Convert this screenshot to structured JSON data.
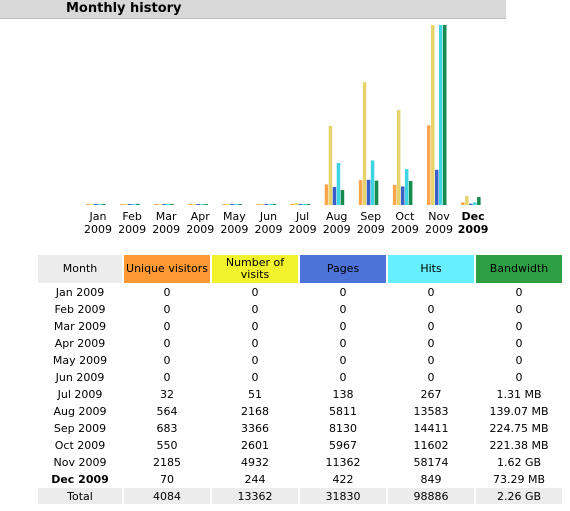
{
  "title": "Monthly history",
  "colors": {
    "visitors": "#ffa64d",
    "visits": "#e7d36b",
    "pages": "#3b5fc9",
    "hits": "#3fd4e1",
    "bandwidth": "#178a4e"
  },
  "chart_data": {
    "type": "bar",
    "categories": [
      {
        "month": "Jan",
        "year": "2009",
        "current": false
      },
      {
        "month": "Feb",
        "year": "2009",
        "current": false
      },
      {
        "month": "Mar",
        "year": "2009",
        "current": false
      },
      {
        "month": "Apr",
        "year": "2009",
        "current": false
      },
      {
        "month": "May",
        "year": "2009",
        "current": false
      },
      {
        "month": "Jun",
        "year": "2009",
        "current": false
      },
      {
        "month": "Jul",
        "year": "2009",
        "current": false
      },
      {
        "month": "Aug",
        "year": "2009",
        "current": false
      },
      {
        "month": "Sep",
        "year": "2009",
        "current": false
      },
      {
        "month": "Oct",
        "year": "2009",
        "current": false
      },
      {
        "month": "Nov",
        "year": "2009",
        "current": false
      },
      {
        "month": "Dec",
        "year": "2009",
        "current": true
      }
    ],
    "series": [
      {
        "name": "Unique visitors",
        "key": "visitors",
        "values": [
          0,
          0,
          0,
          0,
          0,
          0,
          32,
          564,
          683,
          550,
          2185,
          70
        ]
      },
      {
        "name": "Number of visits",
        "key": "visits",
        "values": [
          0,
          0,
          0,
          0,
          0,
          0,
          51,
          2168,
          3366,
          2601,
          4932,
          244
        ]
      },
      {
        "name": "Pages",
        "key": "pages",
        "values": [
          0,
          0,
          0,
          0,
          0,
          0,
          138,
          5811,
          8130,
          5967,
          11362,
          422
        ]
      },
      {
        "name": "Hits",
        "key": "hits",
        "values": [
          0,
          0,
          0,
          0,
          0,
          0,
          267,
          13583,
          14411,
          11602,
          58174,
          849
        ]
      },
      {
        "name": "Bandwidth",
        "key": "bandwidth",
        "values_mb": [
          0,
          0,
          0,
          0,
          0,
          0,
          1.31,
          139.07,
          224.75,
          221.38,
          1658.88,
          73.29
        ]
      }
    ]
  },
  "table": {
    "headers": {
      "month": "Month",
      "visitors": "Unique visitors",
      "visits": "Number of visits",
      "pages": "Pages",
      "hits": "Hits",
      "bandwidth": "Bandwidth"
    },
    "rows": [
      {
        "month": "Jan 2009",
        "visitors": "0",
        "visits": "0",
        "pages": "0",
        "hits": "0",
        "bandwidth": "0",
        "current": false
      },
      {
        "month": "Feb 2009",
        "visitors": "0",
        "visits": "0",
        "pages": "0",
        "hits": "0",
        "bandwidth": "0",
        "current": false
      },
      {
        "month": "Mar 2009",
        "visitors": "0",
        "visits": "0",
        "pages": "0",
        "hits": "0",
        "bandwidth": "0",
        "current": false
      },
      {
        "month": "Apr 2009",
        "visitors": "0",
        "visits": "0",
        "pages": "0",
        "hits": "0",
        "bandwidth": "0",
        "current": false
      },
      {
        "month": "May 2009",
        "visitors": "0",
        "visits": "0",
        "pages": "0",
        "hits": "0",
        "bandwidth": "0",
        "current": false
      },
      {
        "month": "Jun 2009",
        "visitors": "0",
        "visits": "0",
        "pages": "0",
        "hits": "0",
        "bandwidth": "0",
        "current": false
      },
      {
        "month": "Jul 2009",
        "visitors": "32",
        "visits": "51",
        "pages": "138",
        "hits": "267",
        "bandwidth": "1.31 MB",
        "current": false
      },
      {
        "month": "Aug 2009",
        "visitors": "564",
        "visits": "2168",
        "pages": "5811",
        "hits": "13583",
        "bandwidth": "139.07 MB",
        "current": false
      },
      {
        "month": "Sep 2009",
        "visitors": "683",
        "visits": "3366",
        "pages": "8130",
        "hits": "14411",
        "bandwidth": "224.75 MB",
        "current": false
      },
      {
        "month": "Oct 2009",
        "visitors": "550",
        "visits": "2601",
        "pages": "5967",
        "hits": "11602",
        "bandwidth": "221.38 MB",
        "current": false
      },
      {
        "month": "Nov 2009",
        "visitors": "2185",
        "visits": "4932",
        "pages": "11362",
        "hits": "58174",
        "bandwidth": "1.62 GB",
        "current": false
      },
      {
        "month": "Dec 2009",
        "visitors": "70",
        "visits": "244",
        "pages": "422",
        "hits": "849",
        "bandwidth": "73.29 MB",
        "current": true
      }
    ],
    "total": {
      "month": "Total",
      "visitors": "4084",
      "visits": "13362",
      "pages": "31830",
      "hits": "98886",
      "bandwidth": "2.26 GB"
    }
  }
}
